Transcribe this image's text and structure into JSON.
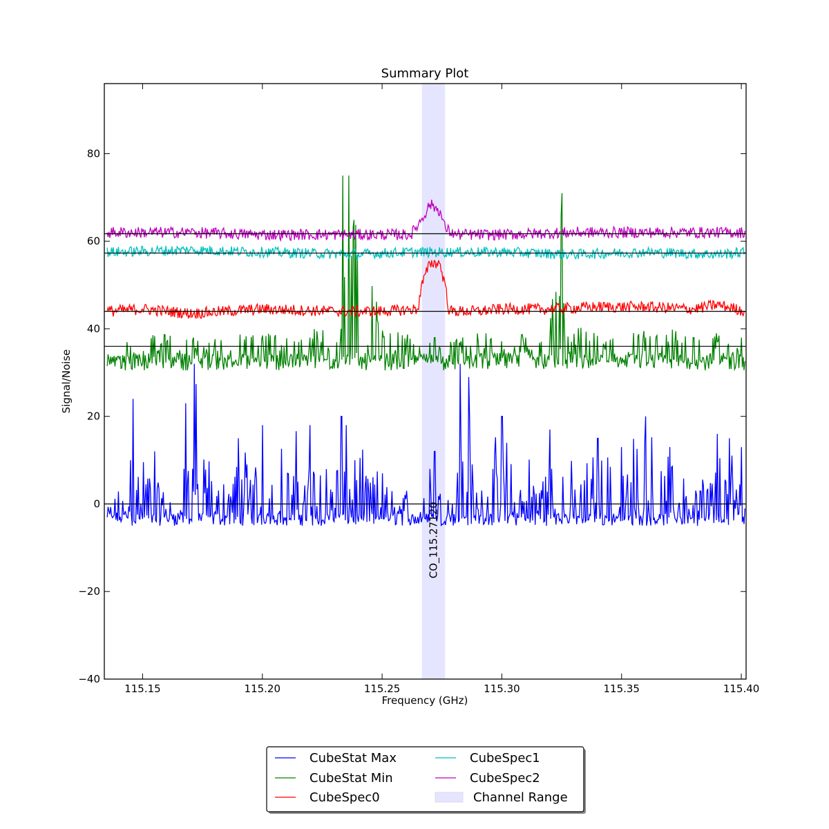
{
  "chart_data": {
    "type": "line",
    "title": "Summary Plot",
    "xlabel": "Frequency (GHz)",
    "ylabel": "Signal/Noise",
    "xlim": [
      115.134,
      115.402
    ],
    "ylim": [
      -40,
      96
    ],
    "xticks": [
      115.15,
      115.2,
      115.25,
      115.3,
      115.35,
      115.4
    ],
    "xtick_labels": [
      "115.15",
      "115.20",
      "115.25",
      "115.30",
      "115.35",
      "115.40"
    ],
    "yticks": [
      -40,
      -20,
      0,
      20,
      40,
      60,
      80
    ],
    "ytick_labels": [
      "−40",
      "−20",
      "0",
      "20",
      "40",
      "60",
      "80"
    ],
    "grid": false,
    "legend_position": "bottom-center",
    "channel_range": {
      "name": "Channel Range",
      "x": [
        115.2666,
        115.2763
      ],
      "color": "#e5e5ff"
    },
    "line_marker": {
      "label": "CO_115.27120",
      "x": 115.2712
    },
    "reference_lines": [
      0,
      36,
      44,
      57.3,
      61.7
    ],
    "series": [
      {
        "name": "CubeStat Max",
        "color": "#0000ff",
        "x": [
          115.135,
          115.145,
          115.146,
          115.155,
          115.165,
          115.168,
          115.1715,
          115.18,
          115.19,
          115.2,
          115.21,
          115.22,
          115.233,
          115.235,
          115.25,
          115.26,
          115.265,
          115.27,
          115.272,
          115.276,
          115.28,
          115.2825,
          115.286,
          115.29,
          115.3,
          115.31,
          115.32,
          115.33,
          115.34,
          115.35,
          115.36,
          115.37,
          115.38,
          115.39,
          115.395,
          115.4,
          115.402
        ],
        "values": [
          -2,
          10,
          24,
          12,
          -3,
          23,
          32,
          8,
          15,
          18,
          17,
          18,
          20,
          18,
          7,
          3,
          -1,
          8,
          12,
          2,
          12,
          32,
          29,
          5,
          20,
          12,
          17,
          10,
          15,
          13,
          20,
          13,
          12,
          16,
          15,
          13,
          -2
        ]
      },
      {
        "name": "CubeStat Min",
        "color": "#008000",
        "x": [
          115.135,
          115.145,
          115.16,
          115.18,
          115.2,
          115.22,
          115.233,
          115.2335,
          115.235,
          115.236,
          115.25,
          115.26,
          115.268,
          115.272,
          115.276,
          115.28,
          115.29,
          115.31,
          115.32,
          115.325,
          115.326,
          115.34,
          115.36,
          115.38,
          115.39,
          115.4,
          115.402
        ],
        "values": [
          34,
          36,
          37,
          36,
          38,
          38,
          40,
          75,
          35,
          75,
          38,
          37,
          33,
          38,
          32,
          37,
          37,
          38,
          39,
          71,
          40,
          37,
          38,
          38,
          37,
          38,
          36
        ]
      },
      {
        "name": "CubeSpec0",
        "color": "#ff0000",
        "x": [
          115.135,
          115.15,
          115.17,
          115.2,
          115.23,
          115.25,
          115.265,
          115.2666,
          115.27,
          115.274,
          115.2763,
          115.278,
          115.29,
          115.3,
          115.32,
          115.34,
          115.36,
          115.38,
          115.39,
          115.402
        ],
        "values": [
          44,
          44.5,
          43.5,
          44.5,
          44,
          44,
          44.5,
          50,
          55,
          55,
          50,
          44,
          44,
          44.5,
          44.5,
          45,
          45,
          44.5,
          45.5,
          44
        ]
      },
      {
        "name": "CubeSpec1",
        "color": "#00bfbf",
        "x": [
          115.135,
          115.17,
          115.2,
          115.24,
          115.26,
          115.28,
          115.3,
          115.33,
          115.36,
          115.39,
          115.402
        ],
        "values": [
          57.5,
          58,
          57.5,
          57,
          57.5,
          57.5,
          57.5,
          57,
          57.5,
          57,
          57.5
        ]
      },
      {
        "name": "CubeSpec2",
        "color": "#bf00bf",
        "x": [
          115.135,
          115.17,
          115.2,
          115.24,
          115.262,
          115.2666,
          115.27,
          115.274,
          115.2763,
          115.28,
          115.3,
          115.33,
          115.36,
          115.39,
          115.402
        ],
        "values": [
          62,
          62,
          61.5,
          61.5,
          61.5,
          65,
          68.5,
          67,
          63,
          61.5,
          61.5,
          62,
          62,
          62,
          62
        ]
      }
    ]
  }
}
